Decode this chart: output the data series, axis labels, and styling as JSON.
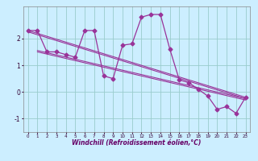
{
  "title": "",
  "xlabel": "Windchill (Refroidissement éolien,°C)",
  "ylabel": "",
  "bg_color": "#cceeff",
  "line_color": "#993399",
  "grid_color": "#99cccc",
  "xlim": [
    -0.5,
    23.5
  ],
  "ylim": [
    -1.5,
    3.2
  ],
  "yticks": [
    -1,
    0,
    1,
    2
  ],
  "xticks": [
    0,
    1,
    2,
    3,
    4,
    5,
    6,
    7,
    8,
    9,
    10,
    11,
    12,
    13,
    14,
    15,
    16,
    17,
    18,
    19,
    20,
    21,
    22,
    23
  ],
  "series_x": [
    0,
    1,
    2,
    3,
    4,
    5,
    6,
    7,
    8,
    9,
    10,
    11,
    12,
    13,
    14,
    15,
    16,
    17,
    18,
    19,
    20,
    21,
    22,
    23
  ],
  "series_y": [
    2.3,
    2.3,
    1.5,
    1.5,
    1.4,
    1.3,
    2.3,
    2.3,
    0.6,
    0.5,
    1.75,
    1.8,
    2.8,
    2.9,
    2.9,
    1.6,
    0.45,
    0.35,
    0.1,
    -0.15,
    -0.65,
    -0.55,
    -0.8,
    -0.2
  ],
  "trend_lines": [
    {
      "x": [
        0,
        23
      ],
      "y": [
        2.3,
        -0.2
      ]
    },
    {
      "x": [
        0,
        23
      ],
      "y": [
        2.25,
        -0.25
      ]
    },
    {
      "x": [
        1,
        23
      ],
      "y": [
        1.55,
        -0.25
      ]
    },
    {
      "x": [
        1,
        23
      ],
      "y": [
        1.5,
        -0.3
      ]
    }
  ],
  "xlabel_fontsize": 5.5,
  "xlabel_color": "#660066",
  "xtick_fontsize": 4.0,
  "ytick_fontsize": 5.5,
  "tick_color": "#330033",
  "markersize": 2.5,
  "linewidth": 0.9,
  "trend_linewidth": 0.8
}
